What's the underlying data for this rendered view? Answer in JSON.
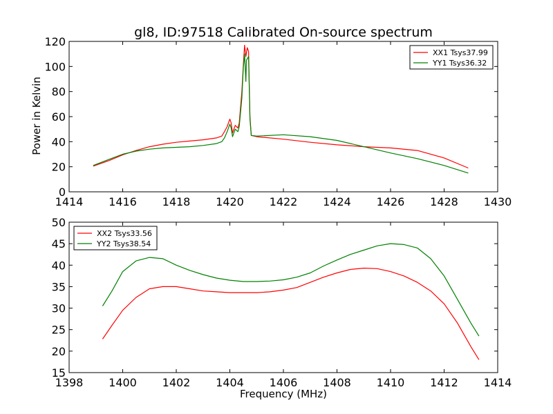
{
  "chart_data": [
    {
      "type": "line",
      "title": "gl8, ID:97518 Calibrated On-source spectrum",
      "xlabel": "",
      "ylabel": "Power in Kelvin",
      "xlim": [
        1414,
        1430
      ],
      "ylim": [
        0,
        120
      ],
      "xticks": [
        1414,
        1416,
        1418,
        1420,
        1422,
        1424,
        1426,
        1428,
        1430
      ],
      "yticks": [
        0,
        20,
        40,
        60,
        80,
        100,
        120
      ],
      "grid": false,
      "legend_position": "top-right",
      "series": [
        {
          "name": "XX1 Tsys37.99",
          "color": "#ff0000",
          "points": [
            [
              1414.9,
              20.5
            ],
            [
              1415.5,
              25
            ],
            [
              1416,
              29.5
            ],
            [
              1416.5,
              33
            ],
            [
              1417,
              36
            ],
            [
              1417.5,
              38
            ],
            [
              1418,
              39.5
            ],
            [
              1418.5,
              40.5
            ],
            [
              1419,
              41.5
            ],
            [
              1419.5,
              43
            ],
            [
              1419.7,
              44.5
            ],
            [
              1419.8,
              48
            ],
            [
              1419.9,
              52
            ],
            [
              1420.0,
              58
            ],
            [
              1420.05,
              55
            ],
            [
              1420.1,
              47
            ],
            [
              1420.2,
              53
            ],
            [
              1420.3,
              51
            ],
            [
              1420.35,
              55
            ],
            [
              1420.45,
              80
            ],
            [
              1420.5,
              100
            ],
            [
              1420.55,
              117
            ],
            [
              1420.6,
              108
            ],
            [
              1420.65,
              115
            ],
            [
              1420.7,
              112
            ],
            [
              1420.75,
              60
            ],
            [
              1420.8,
              45
            ],
            [
              1421,
              44
            ],
            [
              1422,
              42
            ],
            [
              1423,
              39.5
            ],
            [
              1424,
              37.5
            ],
            [
              1425,
              36
            ],
            [
              1426,
              35
            ],
            [
              1427,
              33
            ],
            [
              1428,
              27
            ],
            [
              1428.9,
              19
            ]
          ]
        },
        {
          "name": "YY1 Tsys36.32",
          "color": "#008000",
          "points": [
            [
              1414.9,
              21
            ],
            [
              1415.5,
              26
            ],
            [
              1416,
              30
            ],
            [
              1416.5,
              32.5
            ],
            [
              1417,
              34
            ],
            [
              1417.5,
              35
            ],
            [
              1418,
              35.5
            ],
            [
              1418.5,
              36
            ],
            [
              1419,
              37
            ],
            [
              1419.5,
              38.5
            ],
            [
              1419.7,
              40
            ],
            [
              1419.8,
              43
            ],
            [
              1419.9,
              48
            ],
            [
              1420.0,
              54
            ],
            [
              1420.05,
              51
            ],
            [
              1420.1,
              44
            ],
            [
              1420.2,
              50
            ],
            [
              1420.3,
              48
            ],
            [
              1420.35,
              52
            ],
            [
              1420.45,
              75
            ],
            [
              1420.5,
              98
            ],
            [
              1420.55,
              110
            ],
            [
              1420.6,
              88
            ],
            [
              1420.62,
              105
            ],
            [
              1420.7,
              108
            ],
            [
              1420.75,
              58
            ],
            [
              1420.8,
              45
            ],
            [
              1421,
              44.5
            ],
            [
              1422,
              45.5
            ],
            [
              1423,
              44
            ],
            [
              1424,
              41
            ],
            [
              1425,
              36
            ],
            [
              1426,
              31
            ],
            [
              1427,
              26.5
            ],
            [
              1428,
              21
            ],
            [
              1428.9,
              15
            ]
          ]
        }
      ]
    },
    {
      "type": "line",
      "title": "",
      "xlabel": "Frequency (MHz)",
      "ylabel": "",
      "xlim": [
        1398,
        1414
      ],
      "ylim": [
        15,
        50
      ],
      "xticks": [
        1398,
        1400,
        1402,
        1404,
        1406,
        1408,
        1410,
        1412,
        1414
      ],
      "yticks": [
        15,
        20,
        25,
        30,
        35,
        40,
        45,
        50
      ],
      "grid": false,
      "legend_position": "top-left",
      "series": [
        {
          "name": "XX2 Tsys33.56",
          "color": "#ff0000",
          "points": [
            [
              1399.25,
              22.8
            ],
            [
              1399.6,
              26
            ],
            [
              1400,
              29.5
            ],
            [
              1400.5,
              32.5
            ],
            [
              1401,
              34.5
            ],
            [
              1401.5,
              35
            ],
            [
              1402,
              35
            ],
            [
              1402.5,
              34.5
            ],
            [
              1403,
              34
            ],
            [
              1403.5,
              33.8
            ],
            [
              1404,
              33.6
            ],
            [
              1404.5,
              33.6
            ],
            [
              1405,
              33.6
            ],
            [
              1405.5,
              33.8
            ],
            [
              1406,
              34.2
            ],
            [
              1406.5,
              34.8
            ],
            [
              1407,
              36
            ],
            [
              1407.5,
              37.2
            ],
            [
              1408,
              38.2
            ],
            [
              1408.5,
              39
            ],
            [
              1409,
              39.3
            ],
            [
              1409.5,
              39.2
            ],
            [
              1410,
              38.5
            ],
            [
              1410.5,
              37.5
            ],
            [
              1411,
              36
            ],
            [
              1411.5,
              34
            ],
            [
              1412,
              31
            ],
            [
              1412.5,
              26.5
            ],
            [
              1413,
              21
            ],
            [
              1413.3,
              18
            ]
          ]
        },
        {
          "name": "YY2 Tsys38.54",
          "color": "#008000",
          "points": [
            [
              1399.25,
              30.5
            ],
            [
              1399.6,
              34
            ],
            [
              1400,
              38.5
            ],
            [
              1400.5,
              41
            ],
            [
              1401,
              41.8
            ],
            [
              1401.5,
              41.5
            ],
            [
              1402,
              40
            ],
            [
              1402.5,
              38.8
            ],
            [
              1403,
              37.8
            ],
            [
              1403.5,
              37
            ],
            [
              1404,
              36.5
            ],
            [
              1404.5,
              36.2
            ],
            [
              1405,
              36.2
            ],
            [
              1405.5,
              36.3
            ],
            [
              1406,
              36.6
            ],
            [
              1406.5,
              37.2
            ],
            [
              1407,
              38.2
            ],
            [
              1407.5,
              39.8
            ],
            [
              1408,
              41.2
            ],
            [
              1408.5,
              42.5
            ],
            [
              1409,
              43.5
            ],
            [
              1409.5,
              44.5
            ],
            [
              1410,
              45
            ],
            [
              1410.5,
              44.8
            ],
            [
              1411,
              44
            ],
            [
              1411.5,
              41.5
            ],
            [
              1412,
              37.5
            ],
            [
              1412.5,
              32
            ],
            [
              1413,
              26.5
            ],
            [
              1413.3,
              23.5
            ]
          ]
        }
      ]
    }
  ]
}
